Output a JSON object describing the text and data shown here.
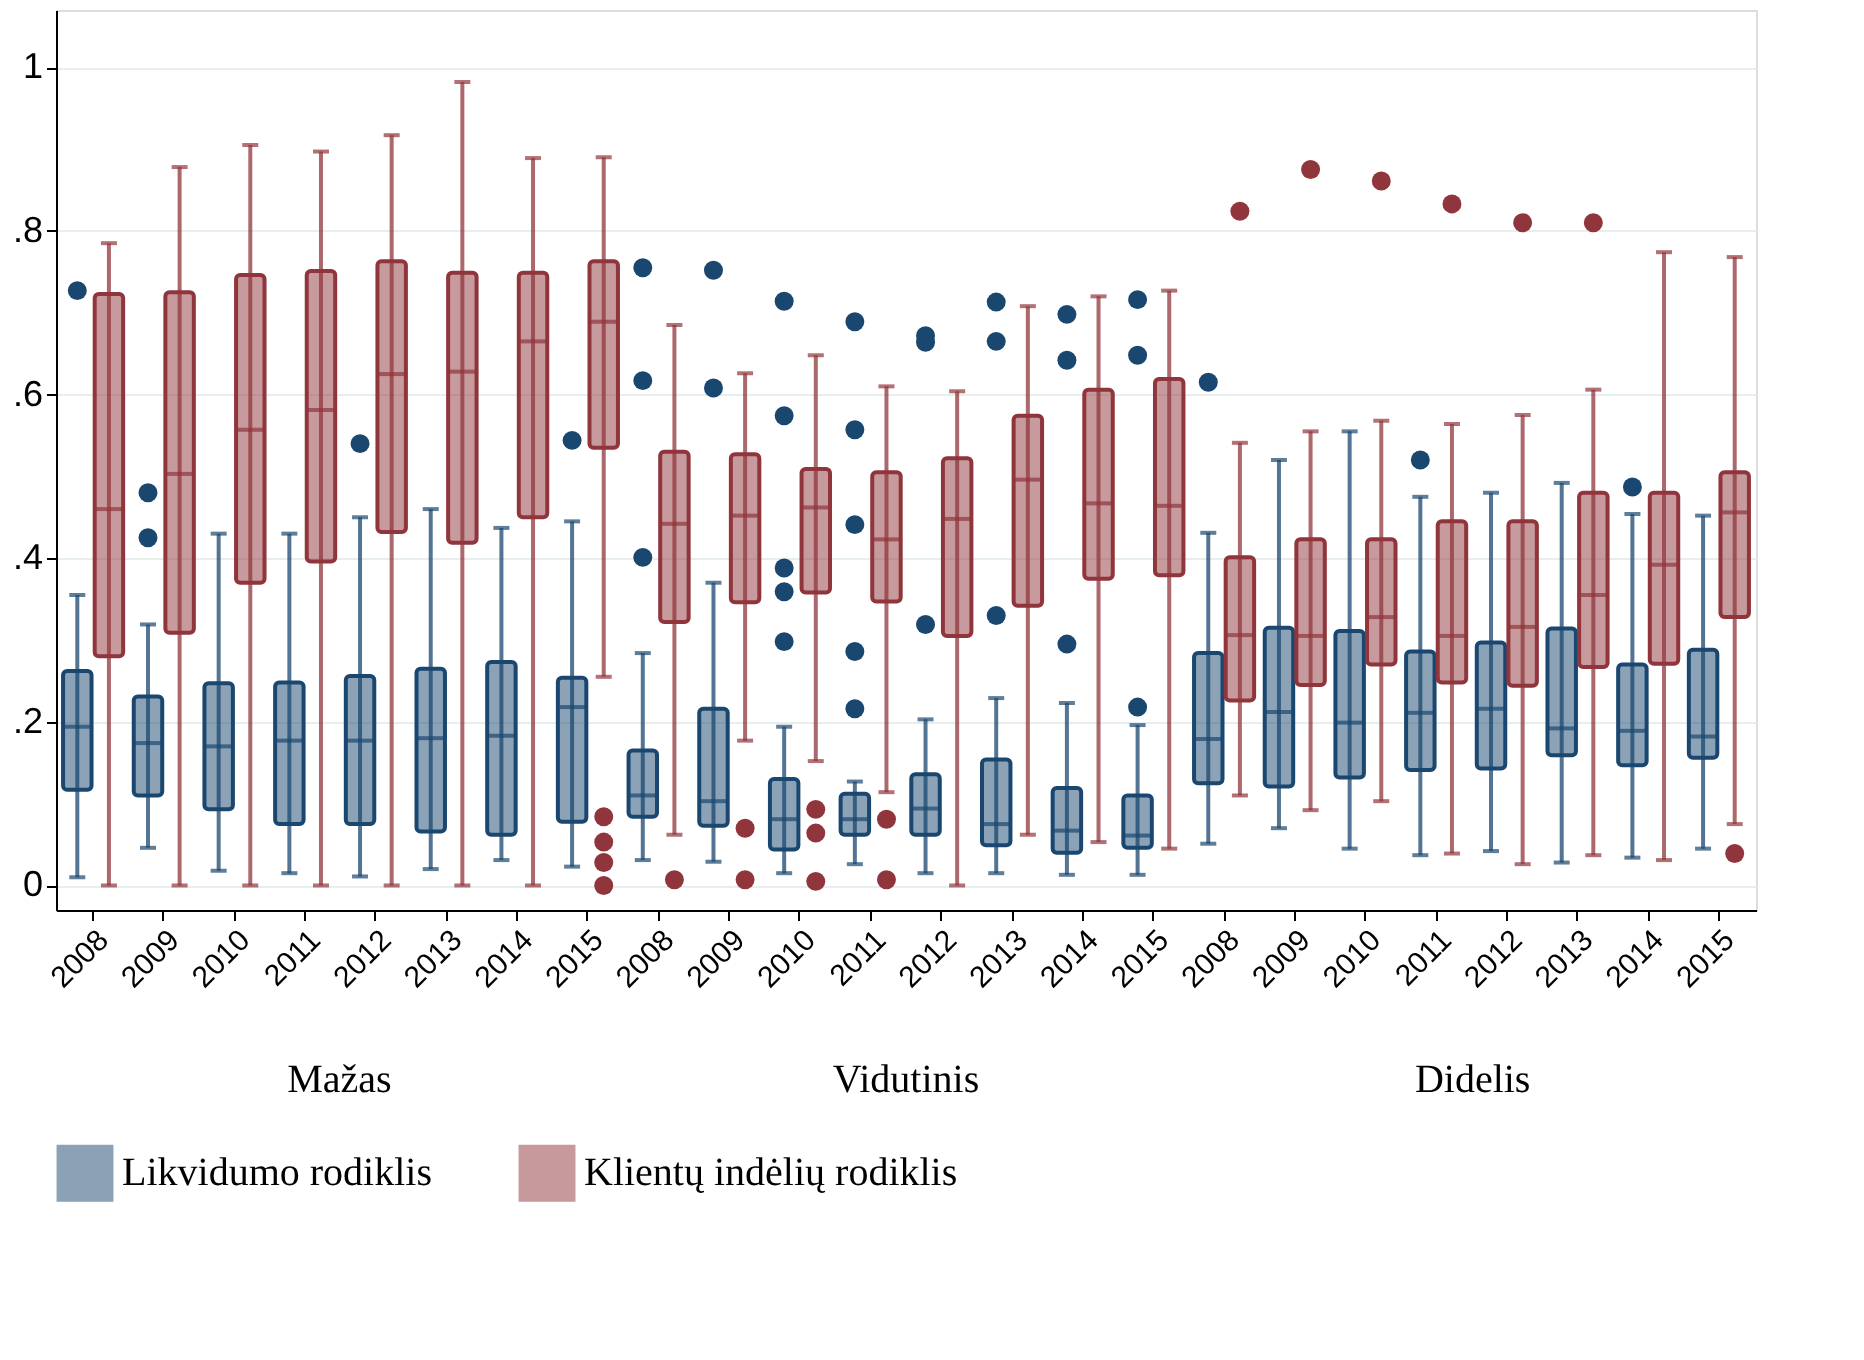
{
  "chart_data": {
    "type": "box",
    "categories": [
      "2008",
      "2009",
      "2010",
      "2011",
      "2012",
      "2013",
      "2014",
      "2015",
      "2008",
      "2009",
      "2010",
      "2011",
      "2012",
      "2013",
      "2014",
      "2015",
      "2008",
      "2009",
      "2010",
      "2011",
      "2012",
      "2013",
      "2014",
      "2015"
    ],
    "series": [
      {
        "name": "Likvidumo rodiklis",
        "color": "#1a476f",
        "boxes": [
          {
            "low": 0.01,
            "q1": 0.117,
            "median": 0.194,
            "q3": 0.262,
            "high": 0.355,
            "outliers": [
              0.727
            ]
          },
          {
            "low": 0.046,
            "q1": 0.11,
            "median": 0.174,
            "q3": 0.231,
            "high": 0.319,
            "outliers": [
              0.48,
              0.425
            ]
          },
          {
            "low": 0.018,
            "q1": 0.093,
            "median": 0.17,
            "q3": 0.247,
            "high": 0.43
          },
          {
            "low": 0.015,
            "q1": 0.075,
            "median": 0.177,
            "q3": 0.248,
            "high": 0.43
          },
          {
            "low": 0.011,
            "q1": 0.075,
            "median": 0.177,
            "q3": 0.256,
            "high": 0.45,
            "outliers": [
              0.54
            ]
          },
          {
            "low": 0.02,
            "q1": 0.066,
            "median": 0.18,
            "q3": 0.265,
            "high": 0.46
          },
          {
            "low": 0.031,
            "q1": 0.062,
            "median": 0.183,
            "q3": 0.273,
            "high": 0.437
          },
          {
            "low": 0.023,
            "q1": 0.078,
            "median": 0.218,
            "q3": 0.254,
            "high": 0.445,
            "outliers": [
              0.544
            ]
          },
          {
            "low": 0.031,
            "q1": 0.084,
            "median": 0.11,
            "q3": 0.165,
            "high": 0.284,
            "outliers": [
              0.755,
              0.617,
              0.401
            ]
          },
          {
            "low": 0.029,
            "q1": 0.073,
            "median": 0.103,
            "q3": 0.216,
            "high": 0.37,
            "outliers": [
              0.752,
              0.608
            ]
          },
          {
            "low": 0.015,
            "q1": 0.044,
            "median": 0.081,
            "q3": 0.13,
            "high": 0.194,
            "outliers": [
              0.714,
              0.574,
              0.388,
              0.359,
              0.298
            ]
          },
          {
            "low": 0.026,
            "q1": 0.062,
            "median": 0.081,
            "q3": 0.112,
            "high": 0.127,
            "outliers": [
              0.689,
              0.557,
              0.441,
              0.286,
              0.216
            ]
          },
          {
            "low": 0.015,
            "q1": 0.062,
            "median": 0.094,
            "q3": 0.136,
            "high": 0.203,
            "outliers": [
              0.672,
              0.664,
              0.319
            ]
          },
          {
            "low": 0.015,
            "q1": 0.049,
            "median": 0.075,
            "q3": 0.154,
            "high": 0.229,
            "outliers": [
              0.713,
              0.665,
              0.33
            ]
          },
          {
            "low": 0.013,
            "q1": 0.04,
            "median": 0.067,
            "q3": 0.119,
            "high": 0.223,
            "outliers": [
              0.698,
              0.642,
              0.295
            ]
          },
          {
            "low": 0.013,
            "q1": 0.046,
            "median": 0.061,
            "q3": 0.11,
            "high": 0.196,
            "outliers": [
              0.716,
              0.648,
              0.218
            ]
          },
          {
            "low": 0.051,
            "q1": 0.125,
            "median": 0.179,
            "q3": 0.284,
            "high": 0.431,
            "outliers": [
              0.615
            ]
          },
          {
            "low": 0.07,
            "q1": 0.121,
            "median": 0.212,
            "q3": 0.315,
            "high": 0.52
          },
          {
            "low": 0.045,
            "q1": 0.132,
            "median": 0.199,
            "q3": 0.311,
            "high": 0.555
          },
          {
            "low": 0.037,
            "q1": 0.141,
            "median": 0.211,
            "q3": 0.286,
            "high": 0.475,
            "outliers": [
              0.52
            ]
          },
          {
            "low": 0.042,
            "q1": 0.143,
            "median": 0.216,
            "q3": 0.297,
            "high": 0.48
          },
          {
            "low": 0.028,
            "q1": 0.159,
            "median": 0.192,
            "q3": 0.314,
            "high": 0.492
          },
          {
            "low": 0.034,
            "q1": 0.147,
            "median": 0.189,
            "q3": 0.27,
            "high": 0.454,
            "outliers": [
              0.487
            ]
          },
          {
            "low": 0.045,
            "q1": 0.156,
            "median": 0.182,
            "q3": 0.288,
            "high": 0.452
          }
        ]
      },
      {
        "name": "Klientų indėlių rodiklis",
        "color": "#90353b",
        "boxes": [
          {
            "low": 0,
            "q1": 0.28,
            "median": 0.46,
            "q3": 0.723,
            "high": 0.785
          },
          {
            "low": 0,
            "q1": 0.309,
            "median": 0.503,
            "q3": 0.725,
            "high": 0.878
          },
          {
            "low": 0,
            "q1": 0.37,
            "median": 0.557,
            "q3": 0.746,
            "high": 0.905
          },
          {
            "low": 0,
            "q1": 0.396,
            "median": 0.581,
            "q3": 0.751,
            "high": 0.897
          },
          {
            "low": 0,
            "q1": 0.432,
            "median": 0.625,
            "q3": 0.763,
            "high": 0.917
          },
          {
            "low": 0,
            "q1": 0.419,
            "median": 0.628,
            "q3": 0.749,
            "high": 0.982
          },
          {
            "low": 0,
            "q1": 0.45,
            "median": 0.665,
            "q3": 0.749,
            "high": 0.889
          },
          {
            "low": 0.255,
            "q1": 0.535,
            "median": 0.689,
            "q3": 0.763,
            "high": 0.89,
            "outliers": [
              0.084,
              0.053,
              0.028,
              0
            ]
          },
          {
            "low": 0.062,
            "q1": 0.322,
            "median": 0.442,
            "q3": 0.53,
            "high": 0.685,
            "outliers": [
              0.007
            ]
          },
          {
            "low": 0.177,
            "q1": 0.346,
            "median": 0.452,
            "q3": 0.527,
            "high": 0.626,
            "outliers": [
              0.07,
              0.007
            ]
          },
          {
            "low": 0.152,
            "q1": 0.358,
            "median": 0.462,
            "q3": 0.509,
            "high": 0.648,
            "outliers": [
              0.093,
              0.064,
              0.005
            ]
          },
          {
            "low": 0.114,
            "q1": 0.347,
            "median": 0.423,
            "q3": 0.505,
            "high": 0.61,
            "outliers": [
              0.081,
              0.007
            ]
          },
          {
            "low": 0,
            "q1": 0.305,
            "median": 0.448,
            "q3": 0.522,
            "high": 0.604
          },
          {
            "low": 0.062,
            "q1": 0.342,
            "median": 0.496,
            "q3": 0.574,
            "high": 0.708
          },
          {
            "low": 0.053,
            "q1": 0.375,
            "median": 0.467,
            "q3": 0.606,
            "high": 0.72
          },
          {
            "low": 0.045,
            "q1": 0.379,
            "median": 0.464,
            "q3": 0.619,
            "high": 0.727
          },
          {
            "low": 0.11,
            "q1": 0.226,
            "median": 0.306,
            "q3": 0.401,
            "high": 0.541,
            "outliers": [
              0.824
            ]
          },
          {
            "low": 0.092,
            "q1": 0.245,
            "median": 0.305,
            "q3": 0.423,
            "high": 0.555,
            "outliers": [
              0.875
            ]
          },
          {
            "low": 0.103,
            "q1": 0.27,
            "median": 0.328,
            "q3": 0.423,
            "high": 0.568,
            "outliers": [
              0.861
            ]
          },
          {
            "low": 0.039,
            "q1": 0.248,
            "median": 0.305,
            "q3": 0.445,
            "high": 0.564,
            "outliers": [
              0.833
            ]
          },
          {
            "low": 0.026,
            "q1": 0.244,
            "median": 0.316,
            "q3": 0.445,
            "high": 0.575,
            "outliers": [
              0.81
            ]
          },
          {
            "low": 0.037,
            "q1": 0.267,
            "median": 0.355,
            "q3": 0.48,
            "high": 0.606,
            "outliers": [
              0.81
            ]
          },
          {
            "low": 0.031,
            "q1": 0.271,
            "median": 0.392,
            "q3": 0.48,
            "high": 0.774
          },
          {
            "low": 0.075,
            "q1": 0.328,
            "median": 0.456,
            "q3": 0.505,
            "high": 0.768,
            "outliers": [
              0.039
            ]
          }
        ]
      }
    ],
    "ylim": [
      -0.03,
      1.07
    ],
    "yticks": [
      0,
      {
        "value": 0.2,
        "label": ".2"
      },
      {
        "value": 0.4,
        "label": ".4"
      },
      {
        "value": 0.6,
        "label": ".6"
      },
      {
        "value": 0.8,
        "label": ".8"
      },
      1
    ],
    "grid": "y",
    "legend": "bottom",
    "annotations": [
      "Mažas",
      "Vidutinis",
      "Didelis"
    ]
  }
}
